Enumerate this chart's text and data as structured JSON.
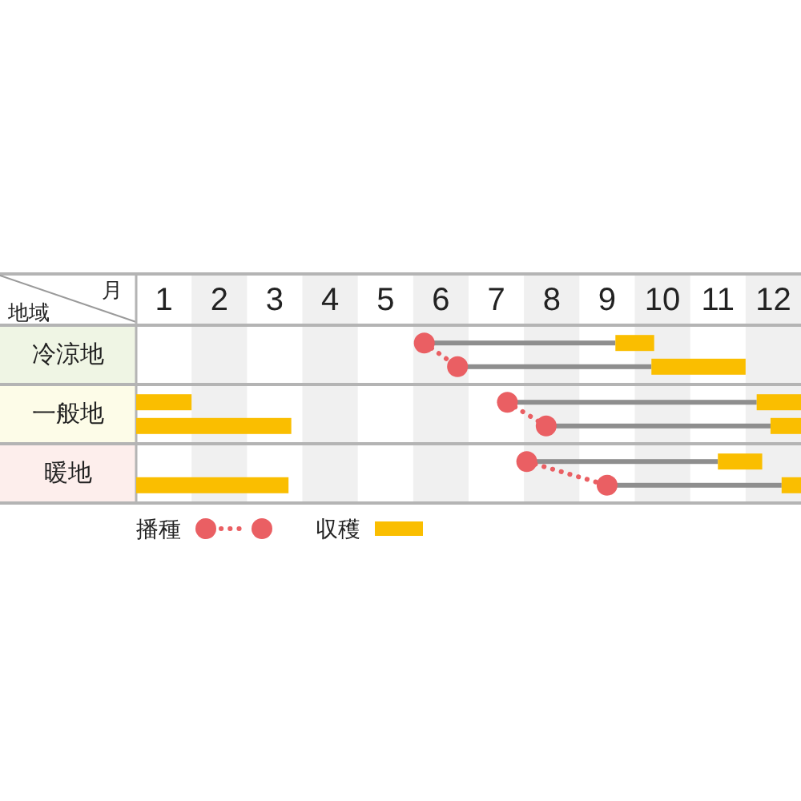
{
  "chart_data": {
    "type": "bar",
    "orientation": "horizontal",
    "xlabel": "月",
    "ylabel": "地域",
    "categories": [
      "冷涼地",
      "一般地",
      "暖地"
    ],
    "xlim": [
      0.5,
      12.5
    ],
    "xticks": [
      1,
      2,
      3,
      4,
      5,
      6,
      7,
      8,
      9,
      10,
      11,
      12
    ],
    "bands": [
      {
        "axis": "x",
        "from": 1.5,
        "to": 2.5,
        "color": "#f0f0f0"
      },
      {
        "axis": "x",
        "from": 3.5,
        "to": 4.5,
        "color": "#f0f0f0"
      },
      {
        "axis": "x",
        "from": 5.5,
        "to": 6.5,
        "color": "#f0f0f0"
      },
      {
        "axis": "x",
        "from": 7.5,
        "to": 8.5,
        "color": "#f0f0f0"
      },
      {
        "axis": "x",
        "from": 9.5,
        "to": 10.5,
        "color": "#f0f0f0"
      },
      {
        "axis": "x",
        "from": 11.5,
        "to": 12.5,
        "color": "#f0f0f0"
      }
    ],
    "legend": "bottom",
    "series": [
      {
        "type": "scatter",
        "name": "播種",
        "color": "#ea5f63",
        "marker": "circle",
        "line_style": "dotted",
        "values": [
          5.7,
          7.2,
          7.55
        ]
      },
      {
        "type": "bar",
        "color": "#8e8e8e",
        "base": [
          5.7,
          7.2,
          7.55
        ],
        "values": [
          3.45,
          4.5,
          3.45
        ]
      },
      {
        "type": "bar",
        "name": "収穫",
        "color": "#fabe00",
        "base": [
          9.15,
          11.7,
          11.0
        ],
        "values": [
          0.7,
          0.8,
          0.8
        ]
      },
      {
        "type": "bar",
        "color": "#fabe00",
        "base": [
          null,
          0.5,
          null
        ],
        "values": [
          null,
          1.0,
          null
        ]
      },
      {
        "type": "scatter",
        "color": "#ea5f63",
        "marker": "circle",
        "values": [
          6.3,
          7.9,
          9.0
        ]
      },
      {
        "type": "bar",
        "color": "#8e8e8e",
        "base": [
          6.3,
          7.9,
          9.0
        ],
        "values": [
          3.5,
          4.05,
          3.15
        ]
      },
      {
        "type": "bar",
        "color": "#fabe00",
        "base": [
          9.8,
          11.95,
          12.15
        ],
        "values": [
          1.7,
          0.55,
          0.35
        ]
      },
      {
        "type": "bar",
        "color": "#fabe00",
        "base": [
          null,
          0.5,
          0.5
        ],
        "values": [
          null,
          2.8,
          2.75
        ]
      }
    ]
  }
}
